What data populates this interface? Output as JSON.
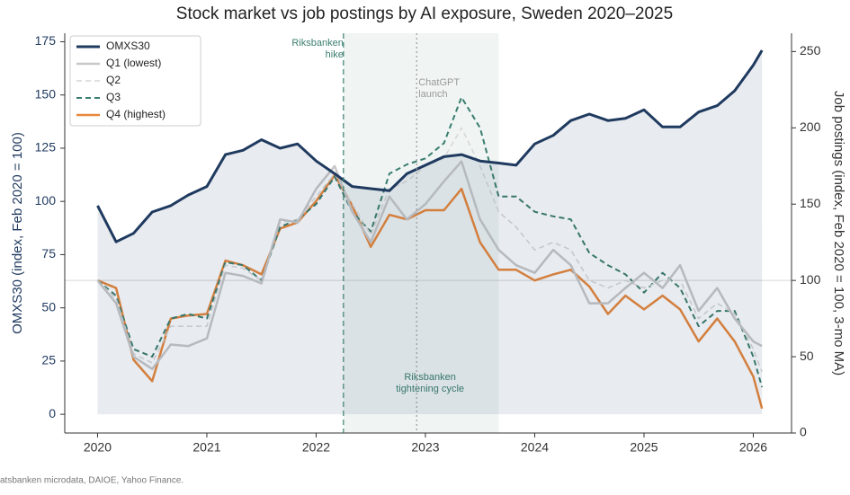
{
  "chart_data": {
    "type": "line",
    "title": "Stock market vs job postings by AI exposure, Sweden 2020–2025",
    "y_label": "OMXS30 (index, Feb 2020 = 100)",
    "y2_label": "Job postings (index, Feb 2020 = 100, 3-mo MA)",
    "source": "atsbanken microdata, DAIOE, Yahoo Finance.",
    "x": [
      2020.0,
      2020.17,
      2020.33,
      2020.5,
      2020.67,
      2020.83,
      2021.0,
      2021.17,
      2021.33,
      2021.5,
      2021.67,
      2021.83,
      2022.0,
      2022.17,
      2022.33,
      2022.5,
      2022.67,
      2022.83,
      2023.0,
      2023.17,
      2023.33,
      2023.5,
      2023.67,
      2023.83,
      2024.0,
      2024.17,
      2024.33,
      2024.5,
      2024.67,
      2024.83,
      2025.0,
      2025.17,
      2025.33,
      2025.5,
      2025.67,
      2025.83,
      2026.0,
      2026.08
    ],
    "xlim": [
      2019.7,
      2026.35
    ],
    "xticks": [
      2020,
      2021,
      2022,
      2023,
      2024,
      2025,
      2026
    ],
    "ylim": [
      -8.8,
      179
    ],
    "yticks": [
      0,
      25,
      50,
      75,
      100,
      125,
      150,
      175
    ],
    "y2lim": [
      0,
      262
    ],
    "y2ticks": [
      0,
      50,
      100,
      150,
      200,
      250
    ],
    "legend": "upper left",
    "series": [
      {
        "name": "OMXS30",
        "color": "#1f3a5f",
        "style": "solid",
        "width": 3,
        "area": true,
        "values": [
          98,
          81,
          85,
          95,
          98,
          103,
          107,
          122,
          124,
          129,
          125,
          127,
          119,
          113,
          107,
          106,
          105,
          113,
          117,
          121,
          122,
          119,
          118,
          117,
          127,
          131,
          138,
          141,
          138,
          139,
          143,
          135,
          135,
          142,
          145,
          152,
          164,
          171
        ]
      },
      {
        "name": "Q1 (lowest)",
        "color": "#c8c8c8",
        "style": "solid",
        "width": 2.5,
        "axis": "y2",
        "values": [
          100,
          85,
          50,
          42,
          58,
          57,
          62,
          105,
          103,
          98,
          140,
          138,
          160,
          175,
          145,
          125,
          155,
          140,
          150,
          165,
          178,
          140,
          120,
          110,
          105,
          120,
          110,
          85,
          85,
          95,
          105,
          95,
          110,
          80,
          95,
          75,
          60,
          57
        ]
      },
      {
        "name": "Q2",
        "color": "#d6d6d6",
        "style": "dashed",
        "width": 1.5,
        "axis": "y2",
        "values": [
          100,
          88,
          52,
          46,
          70,
          70,
          70,
          110,
          108,
          100,
          138,
          140,
          155,
          170,
          150,
          130,
          160,
          165,
          175,
          180,
          200,
          175,
          145,
          135,
          120,
          125,
          120,
          100,
          95,
          100,
          95,
          100,
          100,
          75,
          85,
          78,
          55,
          40
        ]
      },
      {
        "name": "Q3",
        "color": "#3a7d6e",
        "style": "dashed",
        "width": 2,
        "axis": "y2",
        "values": [
          100,
          90,
          55,
          50,
          75,
          78,
          75,
          112,
          110,
          100,
          135,
          140,
          150,
          168,
          145,
          132,
          170,
          176,
          180,
          190,
          220,
          200,
          155,
          155,
          145,
          142,
          140,
          118,
          110,
          104,
          92,
          105,
          95,
          70,
          80,
          80,
          50,
          30
        ]
      },
      {
        "name": "Q4 (highest)",
        "color": "#e8873a",
        "style": "solid",
        "width": 2.5,
        "axis": "y2",
        "values": [
          100,
          95,
          48,
          34,
          75,
          77,
          78,
          113,
          110,
          104,
          134,
          138,
          152,
          169,
          149,
          122,
          143,
          140,
          146,
          146,
          160,
          125,
          107,
          107,
          100,
          104,
          107,
          96,
          78,
          90,
          81,
          90,
          81,
          60,
          75,
          60,
          37,
          16
        ]
      }
    ],
    "hline_y2": 100,
    "shade": {
      "from": 2022.25,
      "to": 2023.67,
      "label": [
        "Riksbanken",
        "tightening cycle"
      ]
    },
    "events": [
      {
        "x": 2022.25,
        "label": [
          "Riksbanken",
          "hike"
        ],
        "color": "#3a7d6e",
        "style": "dashed"
      },
      {
        "x": 2022.92,
        "label": [
          "ChatGPT",
          "launch"
        ],
        "color": "#999999",
        "style": "dotted"
      }
    ]
  }
}
